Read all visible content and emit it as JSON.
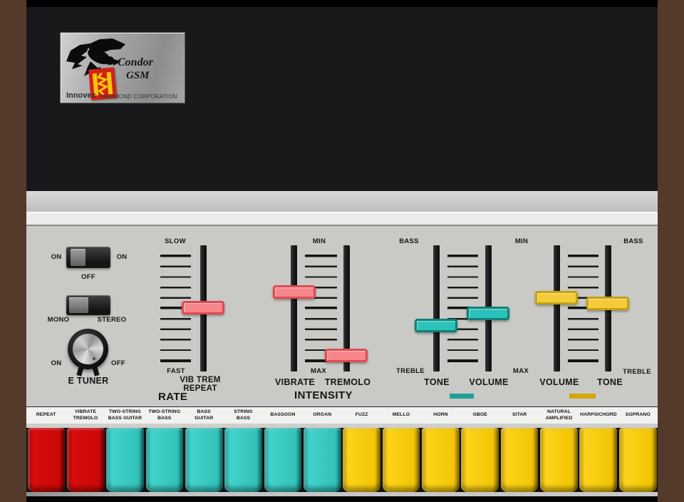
{
  "logo": {
    "title": "Condor",
    "subtitle": "GSM",
    "brand": "Innovex",
    "brand_suffix": "/HAMMOND CORPORATION"
  },
  "controls": {
    "power_switch": {
      "left": "ON",
      "right": "ON",
      "below": "OFF"
    },
    "mode_switch": {
      "left": "MONO",
      "right": "STEREO"
    },
    "tuner_knob": {
      "left": "ON",
      "right": "OFF",
      "label": "E TUNER"
    }
  },
  "rate": {
    "top": "SLOW",
    "bottom": "FAST",
    "slider_line1": "VIB TREM",
    "slider_line2": "REPEAT",
    "section": "RATE"
  },
  "intensity": {
    "top": "MIN",
    "bottom": "MAX",
    "left_slider": "VIBRATE",
    "right_slider": "TREMOLO",
    "section": "INTENSITY"
  },
  "tone_volume": {
    "top_left": "BASS",
    "bottom_left": "TREBLE",
    "left_slider": "TONE",
    "right_slider": "VOLUME",
    "top_right": "MIN",
    "bottom_right": "MAX"
  },
  "volume_tone": {
    "left_slider": "VOLUME",
    "right_slider": "TONE",
    "top_right": "BASS",
    "bottom_right": "TREBLE"
  },
  "colors": {
    "handle_red": "#f5868c",
    "handle_teal": "#2cc2ba",
    "handle_yellow": "#f4cc39",
    "tab_red": "#cb0909",
    "tab_teal": "#32c2ba",
    "tab_yellow": "#f3c505",
    "indicator_teal": "#1e9e96",
    "indicator_yellow": "#d2a70c",
    "panel_gray": "#c9c9c5",
    "cabinet_black": "#19191b",
    "frame_brown": "#533a2b"
  },
  "tabs": [
    {
      "label": "REPEAT",
      "color": "red"
    },
    {
      "label": "VIBRATE\nTREMOLO",
      "color": "red"
    },
    {
      "label": "TWO-STRING\nBASS GUITAR",
      "color": "teal"
    },
    {
      "label": "TWO-STRING\nBASS",
      "color": "teal"
    },
    {
      "label": "BASS\nGUITAR",
      "color": "teal"
    },
    {
      "label": "STRING\nBASS",
      "color": "teal"
    },
    {
      "label": "BASSOON",
      "color": "teal"
    },
    {
      "label": "ORGAN",
      "color": "teal"
    },
    {
      "label": "FUZZ",
      "color": "yellow"
    },
    {
      "label": "MELLO",
      "color": "yellow"
    },
    {
      "label": "HORN",
      "color": "yellow"
    },
    {
      "label": "OBOE",
      "color": "yellow"
    },
    {
      "label": "SITAR",
      "color": "yellow"
    },
    {
      "label": "NATURAL\nAMPLIFIED",
      "color": "yellow"
    },
    {
      "label": "HARPSICHORD",
      "color": "yellow"
    },
    {
      "label": "SOPRANO",
      "color": "yellow"
    }
  ]
}
